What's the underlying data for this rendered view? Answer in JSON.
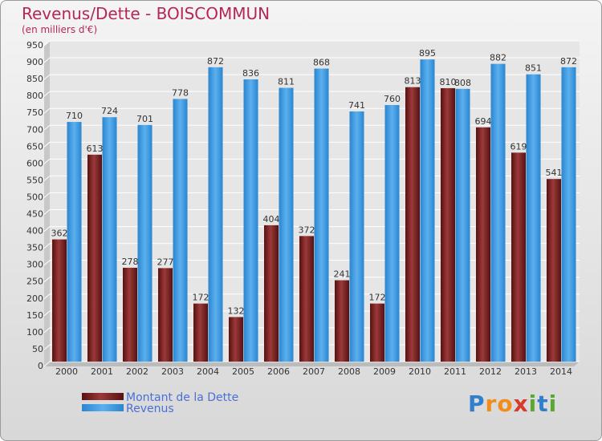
{
  "header": {
    "title": "Revenus/Dette - BOISCOMMUN",
    "subtitle": "(en milliers d'€)"
  },
  "logo": {
    "text": "Proxiti",
    "letters": [
      "P",
      "r",
      "o",
      "x",
      "i",
      "t",
      "i"
    ],
    "colors": [
      "#2f7fcc",
      "#f28c1c",
      "#f28c1c",
      "#d93a2b",
      "#5aa832",
      "#2f7fcc",
      "#5aa832"
    ]
  },
  "chart_data": {
    "type": "bar",
    "title": "Revenus/Dette - BOISCOMMUN",
    "ylabel": "(en milliers d'€)",
    "categories": [
      "2000",
      "2001",
      "2002",
      "2003",
      "2004",
      "2005",
      "2006",
      "2007",
      "2008",
      "2009",
      "2010",
      "2011",
      "2012",
      "2013",
      "2014"
    ],
    "series": [
      {
        "name": "Montant de la Dette",
        "color": "#7a1f1f",
        "values": [
          362,
          613,
          278,
          277,
          172,
          132,
          404,
          372,
          241,
          172,
          813,
          810,
          694,
          619,
          541
        ]
      },
      {
        "name": "Revenus",
        "color": "#4aa3e8",
        "values": [
          710,
          724,
          701,
          778,
          872,
          836,
          811,
          868,
          741,
          760,
          895,
          808,
          882,
          851,
          872
        ]
      }
    ],
    "ylim": [
      0,
      950
    ],
    "yticks": [
      0,
      50,
      100,
      150,
      200,
      250,
      300,
      350,
      400,
      450,
      500,
      550,
      600,
      650,
      700,
      750,
      800,
      850,
      900,
      950
    ],
    "grid": true,
    "legend_position": "bottom-left"
  }
}
